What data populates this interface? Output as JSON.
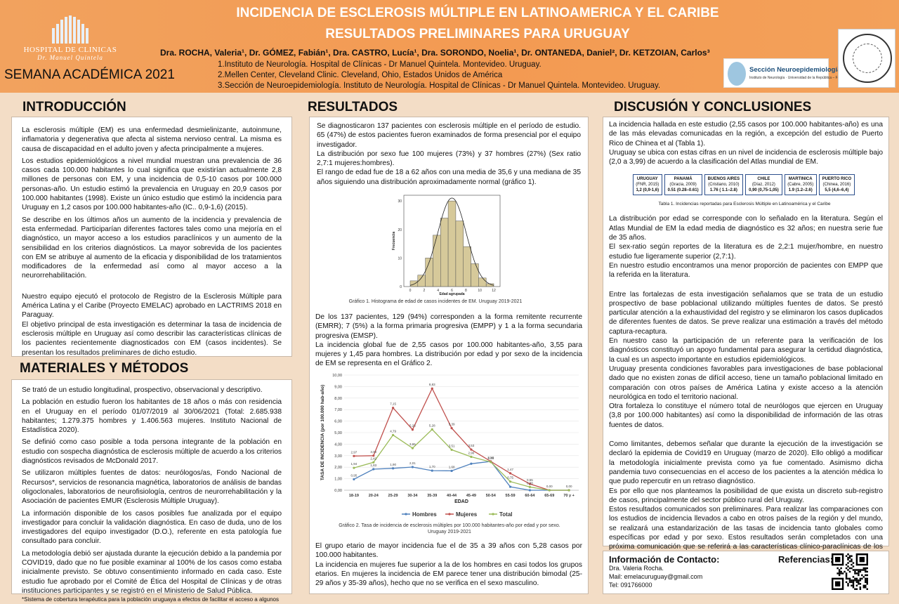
{
  "header": {
    "title1": "INCIDENCIA DE ESCLEROSIS MÚLTIPLE EN LATINOAMERICA Y EL CARIBE",
    "title2": "RESULTADOS PRELIMINARES PARA URUGUAY",
    "authors": "Dra. ROCHA, Valeria¹, Dr. GÓMEZ, Fabián¹, Dra. CASTRO, Lucía¹, Dra. SORONDO, Noelia¹, Dr. ONTANEDA, Daniel², Dr. KETZOIAN, Carlos³",
    "affiliations": [
      "1.Instituto de Neurología. Hospital de Clínicas - Dr Manuel Quintela. Montevideo. Uruguay.",
      "2.Mellen Center, Cleveland Clinic. Cleveland, Ohio, Estados Unidos de América",
      "3.Sección de Neuroepidemiología. Instituto de Neurología. Hospital de Clínicas - Dr Manuel Quintela. Montevideo. Uruguay."
    ],
    "hospital_name": "HOSPITAL DE CLINICAS",
    "hospital_sub": "Dr. Manuel Quintela",
    "semana": "SEMANA ACADÉMICA 2021",
    "seccion_logo": "Sección Neuroepidemiología",
    "seccion_logo_sub": "Instituto de Neurología · Universidad de la República – Facultad de Medicina",
    "seal_text": "INSTITUTO DE NEUROLOGÍA · PROF. A. RICALDONI · MONTEVIDEO"
  },
  "intro": {
    "title": "INTRODUCCIÓN",
    "p1": "La esclerosis múltiple (EM) es una enfermedad desmielinizante, autoinmune, inflamatoria y degenerativa que afecta al sistema nervioso central. La misma es causa de discapacidad en el adulto joven y afecta principalmente a mujeres.",
    "p2": "Los estudios epidemiológicos a nivel mundial muestran una prevalencia de 36 casos cada 100.000 habitantes lo cual significa que existirían actualmente 2,8 millones de personas con EM, y una incidencia de 0,5-10 casos por 100.000 personas-año. Un estudio estimó la prevalencia en Uruguay en 20,9 casos por 100.000 habitantes (1998). Existe un único estudio que estimó la incidencia para Uruguay en 1,2 casos por 100.000 habitantes-año (IC.. 0,9-1,6) (2015).",
    "p3": "Se describe en los últimos años un aumento de la incidencia y prevalencia de esta enfermedad. Participarían diferentes factores tales como una mejoría en el diagnóstico, un mayor acceso a los estudios paraclínicos y un aumento de la sensibilidad en los criterios diagnósticos. La mayor sobrevida de los pacientes con EM se atribuye al aumento de la eficacia y disponibilidad de los tratamientos modificadores de la enfermedad así como al mayor acceso a la neurorrehabilitación.",
    "p4": "Nuestro equipo ejecutó el protocolo de Registro de la Esclerosis Múltiple para América Latina y el Caribe (Proyecto EMELAC) aprobado en LACTRIMS 2018 en Paraguay.",
    "p5": "El objetivo principal de esta investigación es determinar la tasa de incidencia de esclerosis múltiple en Uruguay así como describir las características clínicas de los pacientes recientemente diagnosticados con EM (casos incidentes). Se presentan los resultados preliminares de dicho estudio."
  },
  "methods": {
    "title": "MATERIALES Y MÉTODOS",
    "p1": "Se trató de un estudio longitudinal, prospectivo, observacional y descriptivo.",
    "p2": "La población en estudio fueron los habitantes de 18 años o más con residencia en el Uruguay en el período 01/07/2019 al 30/06/2021 (Total: 2.685.938 habitantes; 1.279.375 hombres y 1.406.563 mujeres. Instituto Nacional de Estadística 2020).",
    "p3": "Se definió como caso posible a toda persona integrante de la población en estudio con sospecha diagnóstica de esclerosis múltiple de acuerdo a los criterios diagnósticos revisados de McDonald 2017.",
    "p4": "Se utilizaron múltiples fuentes de datos: neurólogos/as, Fondo Nacional de Recursos*, servicios de resonancia magnética, laboratorios de análisis de bandas oligoclonales, laboratorios de neurofisiología, centros de neurorrehabilitación y la Asociación de pacientes EMUR (Esclerosis Múltiple Uruguay).",
    "p5": "La información disponible de los casos posibles fue analizada por el equipo investigador para concluir la validación diagnóstica. En caso de duda, uno de los investigadores del equipo investigador (D.O.), referente en esta patología fue consultado para concluir.",
    "p6": "La metodología debió ser ajustada durante la ejecución debido a la pandemia por COVID19, dado que no fue posible examinar al 100% de los casos como estaba inicialmente previsto. Se obtuvo consentimiento informado en cada caso. Este estudio fue aprobado por el Comité de Ética del Hospital de Clínicas y de otras instituciones participantes y se registró en el Ministerio de Salud Pública.",
    "footnote": "*Sistema de cobertura terapéutica para la población uruguaya a efectos de facilitar el acceso a algunos medicamentos de alto costo y procedimientos"
  },
  "results": {
    "title": "RESULTADOS",
    "p1": "Se diagnosticaron 137 pacientes con esclerosis múltiple en el período de estudio. 65 (47%) de estos pacientes fueron examinados de forma presencial por el equipo investigador.",
    "p2": "La distribución por sexo fue 100 mujeres (73%) y 37 hombres (27%) (Sex ratio 2,7:1 mujeres:hombres).",
    "p3": "El rango de edad fue de 18 a 62 años con una media de 35,6 y una mediana de 35 años siguiendo una distribución aproximadamente normal (gráfico 1).",
    "hist_caption": "Gráfico 1. Histograma de edad de casos incidentes de EM. Uruguay 2019-2021",
    "p4": "De los 137 pacientes, 129 (94%) corresponden a la forma remitente recurrente (EMRR); 7 (5%) a la forma primaria progresiva (EMPP) y 1 a la forma secundaria progresiva (EMSP).",
    "p5": "La incidencia global fue de 2,55 casos por 100.000 habitantes-año, 3,55 para mujeres y 1,45 para hombres. La distribución por edad y por sexo de la incidencia de EM se representa en el Gráfico 2.",
    "line_caption_1": "Gráfico 2. Tasa de incidencia de esclerosis múltiples por 100.000 habitantes-año por edad y por sexo.",
    "line_caption_2": "Uruguay 2019-2021",
    "p6": "El grupo etario de mayor incidencia fue el de 35 a 39 años con 5,28 casos por 100.000 habitantes.",
    "p7": "La incidencia en mujeres fue superior a la de los hombres en casi todos los grupos etarios. En mujeres la incidencia de EM parece tener una distribución bimodal (25-29 años y 35-39 años), hecho que no se verifica en el sexo masculino."
  },
  "chart_data": [
    {
      "type": "bar",
      "title": "",
      "xlabel": "Edad agrupada",
      "ylabel": "Frecuencia",
      "categories": [
        "1",
        "2",
        "3",
        "4",
        "5",
        "6",
        "7",
        "8",
        "9",
        "10",
        "11"
      ],
      "values": [
        2,
        4,
        10,
        18,
        24,
        30,
        23,
        14,
        8,
        3,
        1
      ],
      "x_ticks": [
        "0",
        "2",
        "4",
        "6",
        "8",
        "10",
        "12"
      ],
      "y_ticks": [
        "0",
        "10",
        "20",
        "30"
      ],
      "ylim": [
        0,
        32
      ],
      "overlay": "normal-curve"
    },
    {
      "type": "line",
      "title": "",
      "xlabel": "EDAD",
      "ylabel": "TASA DE INCIDENCIA (por 100.000 hab-año)",
      "categories": [
        "18-19",
        "20-24",
        "25-29",
        "30-34",
        "35-39",
        "40-44",
        "45-49",
        "50-54",
        "55-59",
        "60-64",
        "65-69",
        "70 y +"
      ],
      "ylim": [
        0,
        10
      ],
      "y_ticks": [
        "0,00",
        "1,00",
        "2,00",
        "3,00",
        "4,00",
        "5,00",
        "6,00",
        "7,00",
        "8,00",
        "9,00",
        "10,00"
      ],
      "series": [
        {
          "name": "Hombres",
          "color": "#4f81bd",
          "values": [
            0.95,
            1.83,
            1.9,
            2.01,
            1.7,
            1.68,
            2.3,
            2.5,
            0.3,
            0.0,
            0.0,
            0.0
          ],
          "labels": [
            "0,95",
            "1,83",
            "1,90",
            "2,01",
            "1,70",
            "1,68",
            "",
            "",
            "",
            "",
            "",
            ""
          ]
        },
        {
          "name": "Mujeres",
          "color": "#c0504d",
          "values": [
            2.97,
            3.0,
            7.15,
            5.26,
            8.83,
            5.39,
            3.53,
            2.5,
            1.47,
            0.55,
            0.0,
            0.0
          ],
          "labels": [
            "2,97",
            "3,00",
            "7,15",
            "5,26",
            "8,83",
            "5,39",
            "3,53",
            "2,50",
            "1,47",
            "0,55",
            "0,00",
            "0,00"
          ]
        },
        {
          "name": "Total",
          "color": "#9bbb59",
          "values": [
            1.94,
            2.42,
            4.79,
            3.65,
            5.28,
            3.51,
            2.9,
            2.45,
            0.75,
            0.28,
            0.0,
            0.0
          ],
          "labels": [
            "1,94",
            "2,42",
            "4,79",
            "3,65",
            "5,28",
            "3,51",
            "2,90",
            "2,45",
            "0,75",
            "0,28",
            "",
            ""
          ]
        }
      ],
      "legend": "bottom"
    }
  ],
  "discussion": {
    "title": "DISCUSIÓN Y CONCLUSIONES",
    "p1": "La incidencia hallada en este estudio (2,55 casos por 100.000 habitantes-año) es una de las más elevadas comunicadas en la región, a excepción del estudio de Puerto Rico de Chinea et al (Tabla 1).",
    "p2": "Uruguay se ubica con estas cifras en un nivel de incidencia de esclerosis múltiple bajo (2,0 a 3,99) de acuerdo a la clasificación del Atlas mundial de EM.",
    "table": [
      {
        "name": "URUGUAY",
        "src": "(FNR, 2015)",
        "val": "1,2 (0,9-1,6)"
      },
      {
        "name": "PANAMÁ",
        "src": "(Gracia, 2009)",
        "val": "0.51 (0.28–0.61)"
      },
      {
        "name": "BUENOS AIRES",
        "src": "(Cristiano, 2010)",
        "val": "1.76 ( 1.1–2.8)"
      },
      {
        "name": "CHILE",
        "src": "(Díaz, 2012)",
        "val": "0,90 (0,75-1,05)"
      },
      {
        "name": "MARTINICA",
        "src": "(Cabre, 2005)",
        "val": "1.9 (1.2–2.6)"
      },
      {
        "name": "PUERTO RICO",
        "src": "(Chinea, 2016)",
        "val": "5,5 (4,6–6,4)"
      }
    ],
    "table_caption": "Tabla 1. Incidencias reportadas para Esclerosis Múltiple en Latinoamérica y el Caribe",
    "p3": "La distribución por edad se corresponde con lo señalado en la literatura. Según el Atlas Mundial de EM la edad media de diagnóstico es 32 años; en nuestra serie fue de 35 años.",
    "p4": "El sex-ratio según reportes de la literatura es de 2,2:1 mujer/hombre, en nuestro estudio fue ligeramente superior (2,7:1).",
    "p5": "En nuestro estudio encontramos una menor proporción de pacientes con EMPP que la referida en la literatura.",
    "p6": "Entre las fortalezas de esta investigación señalamos que se trata de un estudio prospectivo de base poblacional utilizando múltiples fuentes de datos. Se prestó particular atención a la exhaustividad del registro y se eliminaron los casos duplicados de diferentes fuentes de datos. Se preve realizar una estimación a través del método captura-recaptura.",
    "p7": "En nuestro caso la participación de un referente para la verificación de los diagnósticos constituyó un apoyo fundamental para asegurar la certidud diagnóstica, la cual es un aspecto importante en estudios epidemiológicos.",
    "p8": "Uruguay presenta condiciones favorables para investigaciones de base poblacional dado que no existen zonas de difícil acceso, tiene un tamaño poblacional limitado en comparación con otros países de América Latina y existe acceso a la atención neurológica en todo el territorio nacional.",
    "p9": "Otra fortaleza lo constituye el número total de neurólogos que ejercen en Uruguay (3,8 por 100.000 habitantes) así como la disponibilidad de información de las otras fuentes de datos.",
    "p10": "Como limitantes, debemos señalar que durante la ejecución de la investigación se declaró la epidemia de Covid19 en Uruguay (marzo de 2020). Ello obligó a modificar la metodología inicialmente prevista como ya fue comentado. Asimismo dicha pandemia tuvo consecuencias en el acceso de los pacientes a la atención médica lo que pudo repercutir en un retraso diagnóstico.",
    "p11": "Es por ello que nos planteamos la posibilidad de que exista un discreto sub-registro de casos, principalmente del sector público rural del Uruguay.",
    "p12": "Estos resultados comunicados son preliminares. Para realizar las comparaciones con los estudios de incidencia llevados a cabo en otros países de la región y del mundo, se realizará una estandarización de las tasas de incidencia tanto globales como específicas por edad y por sexo. Estos resultados serán completados con una próxima comunicación que se referirá a las características clínico-paraclínicas de los pacientes incluidos en este estudio de incidencia."
  },
  "contact": {
    "title": "Información de Contacto:",
    "name": "Dra. Valeria Rocha.",
    "mail": "Mail: emelacuruguay@gmail.com",
    "tel": "Tel: 091766000",
    "ref_title": "Referencias:"
  }
}
